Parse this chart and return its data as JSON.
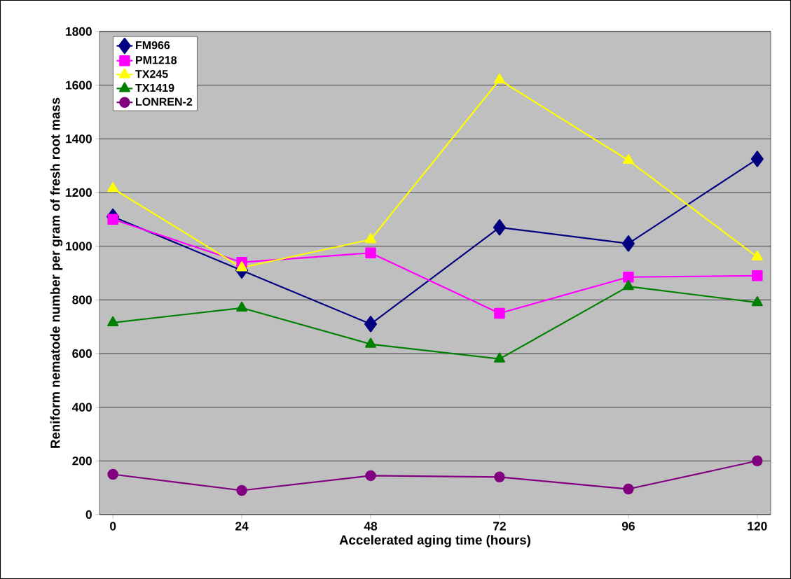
{
  "chart_data": {
    "type": "line",
    "xlabel": "Accelerated aging time (hours)",
    "ylabel": "Reniform nematode number per gram of fresh root mass",
    "x": [
      0,
      24,
      48,
      72,
      96,
      120
    ],
    "xlim": [
      -2.5,
      122.5
    ],
    "xticks": [
      0,
      24,
      48,
      72,
      96,
      120
    ],
    "ylim": [
      0,
      1800
    ],
    "yticks": [
      0,
      200,
      400,
      600,
      800,
      1000,
      1200,
      1400,
      1600,
      1800
    ],
    "grid": "y",
    "legend": "top left",
    "series": [
      {
        "name": "FM966",
        "color": "#000080",
        "marker": "diamond",
        "values": [
          1110,
          910,
          710,
          1070,
          1010,
          1325
        ]
      },
      {
        "name": "PM1218",
        "color": "#ff00ff",
        "marker": "square",
        "values": [
          1100,
          940,
          975,
          750,
          885,
          890
        ]
      },
      {
        "name": "TX245",
        "color": "#ffff00",
        "marker": "triangle",
        "values": [
          1215,
          920,
          1025,
          1620,
          1320,
          960
        ]
      },
      {
        "name": "TX1419",
        "color": "#008000",
        "marker": "triangle",
        "values": [
          715,
          770,
          635,
          580,
          850,
          790
        ]
      },
      {
        "name": "LONREN-2",
        "color": "#800080",
        "marker": "circle",
        "values": [
          150,
          90,
          145,
          140,
          95,
          200
        ]
      }
    ]
  }
}
